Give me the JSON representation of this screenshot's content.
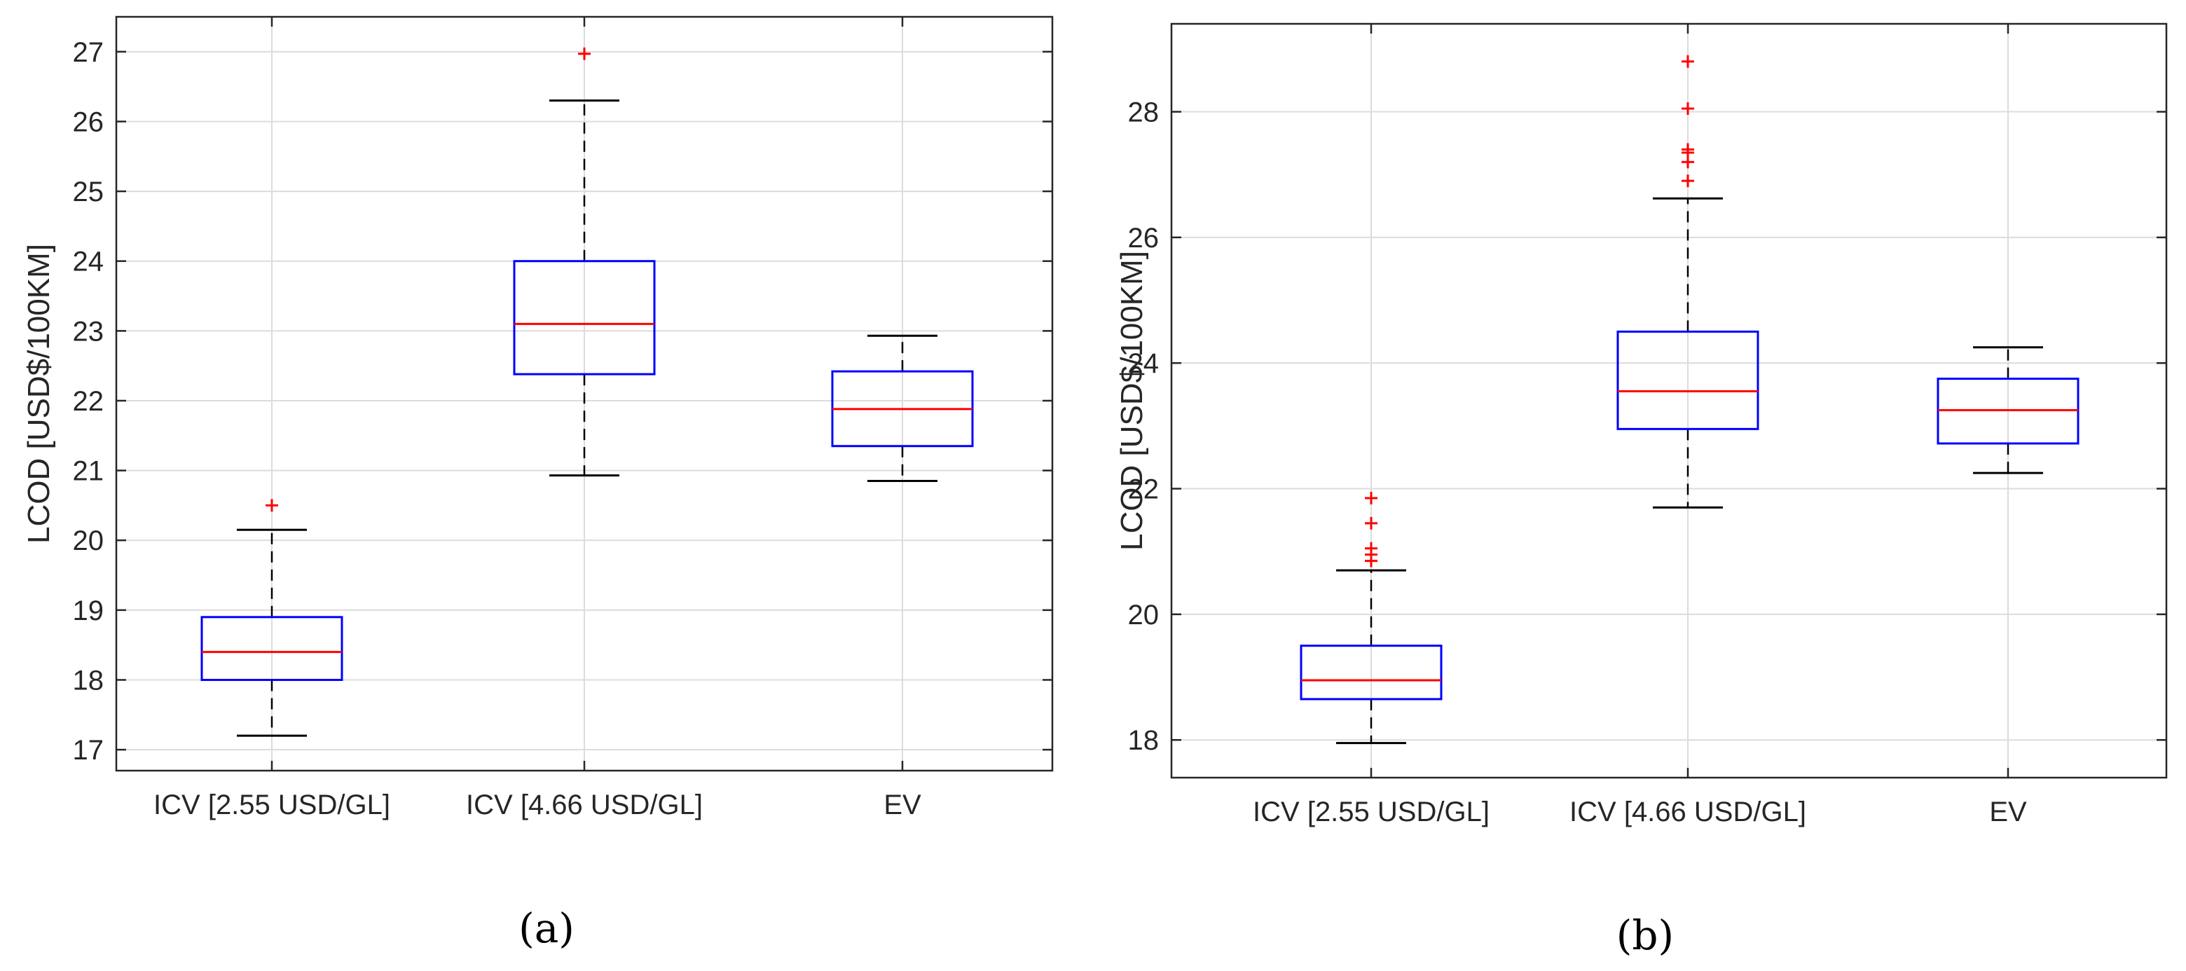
{
  "colors": {
    "box": "#0000ff",
    "median": "#ff0000",
    "outlier": "#ff0000",
    "whisker": "#000000",
    "grid": "#dcdcdc",
    "axis": "#262626"
  },
  "chart_data": [
    {
      "type": "box",
      "caption": "(a)",
      "title": "",
      "xlabel": "",
      "ylabel": "LCOD [USD$/100KM]",
      "ylim": [
        16.7,
        27.5
      ],
      "yticks": [
        17,
        18,
        19,
        20,
        21,
        22,
        23,
        24,
        25,
        26,
        27
      ],
      "grid": true,
      "categories": [
        "ICV [2.55 USD/GL]",
        "ICV [4.66 USD/GL]",
        "EV"
      ],
      "boxes": [
        {
          "category": "ICV [2.55 USD/GL]",
          "whisker_low": 17.2,
          "q1": 18.0,
          "median": 18.4,
          "q3": 18.9,
          "whisker_high": 20.15,
          "outliers": [
            20.5
          ]
        },
        {
          "category": "ICV [4.66 USD/GL]",
          "whisker_low": 20.93,
          "q1": 22.38,
          "median": 23.1,
          "q3": 24.0,
          "whisker_high": 26.3,
          "outliers": [
            26.97
          ]
        },
        {
          "category": "EV",
          "whisker_low": 20.85,
          "q1": 21.35,
          "median": 21.88,
          "q3": 22.42,
          "whisker_high": 22.93,
          "outliers": []
        }
      ]
    },
    {
      "type": "box",
      "caption": "(b)",
      "title": "",
      "xlabel": "",
      "ylabel": "LCOD [USD$/100KM]",
      "ylim": [
        17.4,
        29.4
      ],
      "yticks": [
        18,
        20,
        22,
        24,
        26,
        28
      ],
      "grid": true,
      "categories": [
        "ICV [2.55 USD/GL]",
        "ICV [4.66 USD/GL]",
        "EV"
      ],
      "boxes": [
        {
          "category": "ICV [2.55 USD/GL]",
          "whisker_low": 17.95,
          "q1": 18.65,
          "median": 18.95,
          "q3": 19.5,
          "whisker_high": 20.7,
          "outliers": [
            20.85,
            20.95,
            21.05,
            21.45,
            21.85
          ]
        },
        {
          "category": "ICV [4.66 USD/GL]",
          "whisker_low": 21.7,
          "q1": 22.95,
          "median": 23.55,
          "q3": 24.5,
          "whisker_high": 26.62,
          "outliers": [
            26.9,
            27.2,
            27.35,
            27.4,
            28.05,
            28.8
          ]
        },
        {
          "category": "EV",
          "whisker_low": 22.25,
          "q1": 22.72,
          "median": 23.25,
          "q3": 23.75,
          "whisker_high": 24.25,
          "outliers": []
        }
      ]
    }
  ]
}
